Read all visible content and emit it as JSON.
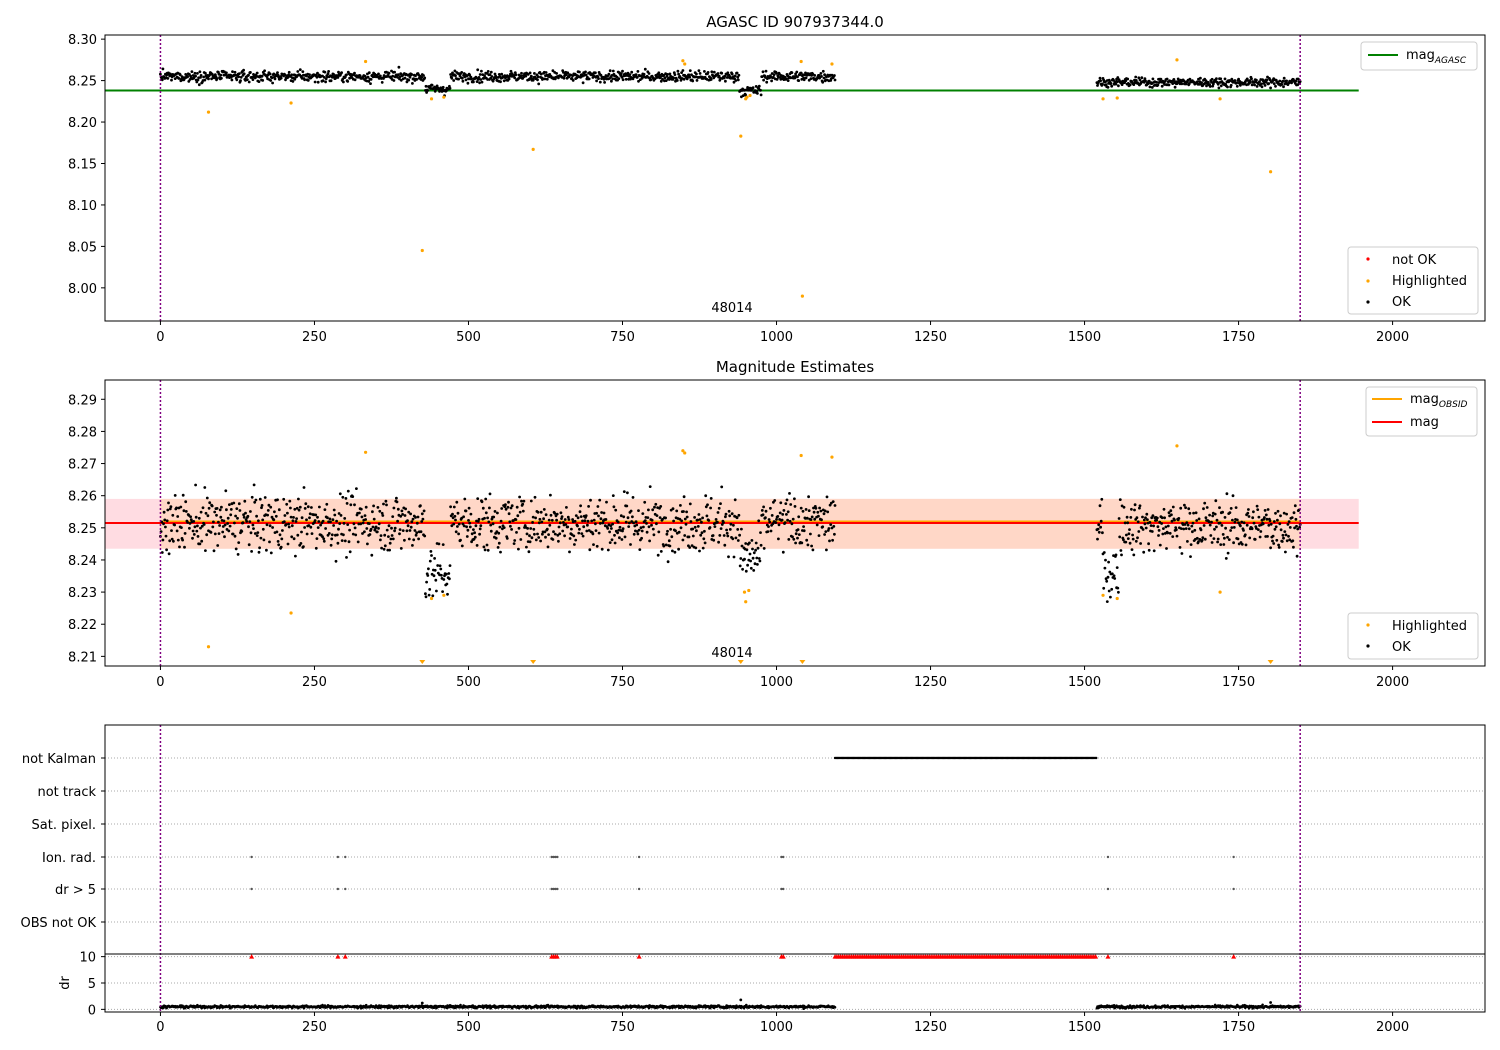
{
  "figure": {
    "title": "AGASC ID 907937344.0"
  },
  "colors": {
    "ok": "#000000",
    "highlighted": "#ffa500",
    "not_ok": "#ff0000",
    "agasc_line": "#008000",
    "obsid_line": "#ffa500",
    "mag_line": "#ff0000",
    "band_pink": "#ffc0cb",
    "band_orange": "#ffd6c0",
    "boundary": "#800080"
  },
  "chart_data": [
    {
      "type": "scatter",
      "id": "agasc",
      "title": "",
      "xlim": [
        -90,
        2150
      ],
      "ylim": [
        7.96,
        8.305
      ],
      "yticks": [
        "8.00",
        "8.05",
        "8.10",
        "8.15",
        "8.20",
        "8.25",
        "8.30"
      ],
      "xticks": [
        "0",
        "250",
        "500",
        "750",
        "1000",
        "1250",
        "1500",
        "1750",
        "2000"
      ],
      "obsid_label": "48014",
      "obsid_boundaries": [
        0,
        1850
      ],
      "reference_line": {
        "name": "mag_AGASC",
        "label_main": "mag",
        "label_sub": "AGASC",
        "y": 8.238,
        "x_range": [
          -90,
          1945
        ]
      },
      "segments": [
        [
          0,
          1095,
          8.255,
          0.006
        ],
        [
          1520,
          1850,
          8.248,
          0.005
        ]
      ],
      "dips": [
        [
          430,
          470,
          8.24
        ],
        [
          940,
          975,
          8.238
        ]
      ],
      "highlighted": [
        [
          78,
          8.212
        ],
        [
          212,
          8.223
        ],
        [
          333,
          8.273
        ],
        [
          425,
          8.045
        ],
        [
          440,
          8.228
        ],
        [
          460,
          8.23
        ],
        [
          605,
          8.167
        ],
        [
          848,
          8.274
        ],
        [
          851,
          8.27
        ],
        [
          942,
          8.183
        ],
        [
          950,
          8.228
        ],
        [
          952,
          8.23
        ],
        [
          957,
          8.232
        ],
        [
          1040,
          8.273
        ],
        [
          1042,
          7.99
        ],
        [
          1090,
          8.27
        ],
        [
          1530,
          8.228
        ],
        [
          1553,
          8.229
        ],
        [
          1650,
          8.275
        ],
        [
          1720,
          8.228
        ],
        [
          1802,
          8.14
        ]
      ],
      "legend_top": [
        {
          "label_main": "mag",
          "label_sub": "AGASC"
        }
      ],
      "legend_bottom": [
        "not OK",
        "Highlighted",
        "OK"
      ]
    },
    {
      "type": "scatter",
      "id": "estimates",
      "title": "Magnitude Estimates",
      "xlim": [
        -90,
        2150
      ],
      "ylim": [
        8.207,
        8.296
      ],
      "yticks": [
        "8.21",
        "8.22",
        "8.23",
        "8.24",
        "8.25",
        "8.26",
        "8.27",
        "8.28",
        "8.29"
      ],
      "xticks": [
        "0",
        "250",
        "500",
        "750",
        "1000",
        "1250",
        "1500",
        "1750",
        "2000"
      ],
      "obsid_label": "48014",
      "obsid_boundaries": [
        0,
        1850
      ],
      "mag_line": {
        "y": 8.2515,
        "band": [
          8.2435,
          8.259
        ]
      },
      "obsid_line": {
        "y": 8.2515,
        "band": [
          8.2435,
          8.259
        ]
      },
      "segments": [
        [
          0,
          1095,
          8.2515,
          0.0075
        ],
        [
          1520,
          1850,
          8.2505,
          0.0068
        ]
      ],
      "dips": [
        [
          430,
          470,
          8.236
        ],
        [
          940,
          975,
          8.241
        ],
        [
          1530,
          1555,
          8.236
        ]
      ],
      "highlighted": [
        [
          78,
          8.213
        ],
        [
          212,
          8.2235
        ],
        [
          333,
          8.2735
        ],
        [
          440,
          8.228
        ],
        [
          460,
          8.229
        ],
        [
          848,
          8.274
        ],
        [
          851,
          8.2733
        ],
        [
          948,
          8.23
        ],
        [
          950,
          8.227
        ],
        [
          955,
          8.2305
        ],
        [
          1040,
          8.2725
        ],
        [
          1090,
          8.272
        ],
        [
          1530,
          8.229
        ],
        [
          1553,
          8.228
        ],
        [
          1650,
          8.2755
        ],
        [
          1720,
          8.23
        ]
      ],
      "clipped_below": [
        425,
        605,
        942,
        1042,
        1802
      ],
      "legend_top": [
        {
          "label_main": "mag",
          "label_sub": "OBSID"
        },
        {
          "label_main": "mag",
          "label_sub": ""
        }
      ],
      "legend_bottom": [
        "Highlighted",
        "OK"
      ]
    },
    {
      "type": "scatter",
      "id": "flags",
      "title": "",
      "xlim": [
        -90,
        2150
      ],
      "xticks": [
        "0",
        "250",
        "500",
        "750",
        "1000",
        "1250",
        "1500",
        "1750",
        "2000"
      ],
      "obsid_boundaries": [
        0,
        1850
      ],
      "rows": [
        "not Kalman",
        "not track",
        "Sat. pixel.",
        "Ion. rad.",
        "dr > 5",
        "OBS not OK"
      ],
      "not_kalman_range": [
        1095,
        1520
      ],
      "ion_rad": [
        148,
        288,
        300,
        635,
        638,
        641,
        644,
        777,
        1008,
        1011,
        1538,
        1742
      ],
      "dr_gt_5": [
        148,
        288,
        300,
        635,
        638,
        641,
        644,
        777,
        1008,
        1011,
        1538,
        1742
      ],
      "dr": {
        "ylabel": "dr",
        "yticks": [
          "0",
          "5",
          "10"
        ],
        "ylim": [
          -0.5,
          10.5
        ],
        "baseline": 0.5,
        "spikes": [
          [
            425,
            1.2
          ],
          [
            942,
            1.8
          ],
          [
            1802,
            1.3
          ]
        ],
        "capped_at_10": [
          148,
          288,
          300,
          635,
          638,
          641,
          644,
          777,
          1008,
          1011,
          1538,
          1742
        ],
        "capped_range": [
          1095,
          1520
        ]
      }
    }
  ]
}
